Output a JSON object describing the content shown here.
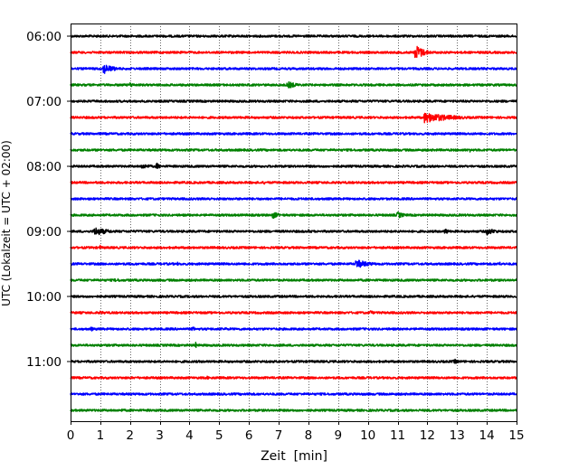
{
  "chart_data": {
    "type": "line",
    "title": "",
    "xlabel": "Zeit  [min]",
    "ylabel": "UTC (Lokalzeit = UTC + 02:00)",
    "xlim": [
      0,
      15
    ],
    "x_ticks": [
      0,
      1,
      2,
      3,
      4,
      5,
      6,
      7,
      8,
      9,
      10,
      11,
      12,
      13,
      14,
      15
    ],
    "x_tick_labels": [
      "0",
      "1",
      "2",
      "3",
      "4",
      "5",
      "6",
      "7",
      "8",
      "9",
      "10",
      "11",
      "12",
      "13",
      "14",
      "15"
    ],
    "y_tick_labels": [
      "06:00",
      "07:00",
      "08:00",
      "09:00",
      "10:00",
      "11:00"
    ],
    "grid": "vertical dotted at each minute",
    "trace_colors": [
      "#000000",
      "#ff0000",
      "#0000ff",
      "#008000"
    ],
    "traces": [
      {
        "label": "06:00",
        "color": "#000000",
        "events": []
      },
      {
        "label": "06:15",
        "color": "#ff0000",
        "events": [
          {
            "t": 11.6,
            "amp": 9,
            "dur": 0.5
          }
        ]
      },
      {
        "label": "06:30",
        "color": "#0000ff",
        "events": [
          {
            "t": 1.1,
            "amp": 6,
            "dur": 0.6
          }
        ]
      },
      {
        "label": "06:45",
        "color": "#008000",
        "events": [
          {
            "t": 2.0,
            "amp": 3,
            "dur": 0.3
          },
          {
            "t": 7.3,
            "amp": 4,
            "dur": 0.6
          }
        ]
      },
      {
        "label": "07:00",
        "color": "#000000",
        "events": []
      },
      {
        "label": "07:15",
        "color": "#ff0000",
        "events": [
          {
            "t": 11.9,
            "amp": 6,
            "dur": 1.6
          }
        ]
      },
      {
        "label": "07:30",
        "color": "#0000ff",
        "events": []
      },
      {
        "label": "07:45",
        "color": "#008000",
        "events": [
          {
            "t": 13.4,
            "amp": 3,
            "dur": 0.2
          }
        ]
      },
      {
        "label": "08:00",
        "color": "#000000",
        "events": [
          {
            "t": 2.4,
            "amp": 3,
            "dur": 0.6
          },
          {
            "t": 2.9,
            "amp": 4,
            "dur": 0.2
          }
        ]
      },
      {
        "label": "08:15",
        "color": "#ff0000",
        "events": [
          {
            "t": 6.5,
            "amp": 2,
            "dur": 0.2
          }
        ]
      },
      {
        "label": "08:30",
        "color": "#0000ff",
        "events": [
          {
            "t": 4.6,
            "amp": 2,
            "dur": 0.5
          }
        ]
      },
      {
        "label": "08:45",
        "color": "#008000",
        "events": [
          {
            "t": 6.8,
            "amp": 4,
            "dur": 0.4
          },
          {
            "t": 11.0,
            "amp": 4,
            "dur": 0.4
          }
        ]
      },
      {
        "label": "09:00",
        "color": "#000000",
        "events": [
          {
            "t": 0.8,
            "amp": 5,
            "dur": 0.8
          },
          {
            "t": 8.0,
            "amp": 2,
            "dur": 0.4
          },
          {
            "t": 12.6,
            "amp": 4,
            "dur": 0.2
          },
          {
            "t": 14.0,
            "amp": 4,
            "dur": 0.6
          }
        ]
      },
      {
        "label": "09:15",
        "color": "#ff0000",
        "events": [
          {
            "t": 1.0,
            "amp": 3,
            "dur": 0.1
          },
          {
            "t": 4.7,
            "amp": 2,
            "dur": 0.2
          }
        ]
      },
      {
        "label": "09:30",
        "color": "#0000ff",
        "events": [
          {
            "t": 9.6,
            "amp": 5,
            "dur": 0.8
          },
          {
            "t": 14.4,
            "amp": 4,
            "dur": 0.1
          },
          {
            "t": 3.6,
            "amp": 2,
            "dur": 0.1
          }
        ]
      },
      {
        "label": "09:45",
        "color": "#008000",
        "events": [
          {
            "t": 1.5,
            "amp": 2,
            "dur": 0.8
          }
        ]
      },
      {
        "label": "10:00",
        "color": "#000000",
        "events": []
      },
      {
        "label": "10:15",
        "color": "#ff0000",
        "events": [
          {
            "t": 1.0,
            "amp": 2,
            "dur": 0.5
          },
          {
            "t": 10.1,
            "amp": 4,
            "dur": 0.1
          }
        ]
      },
      {
        "label": "10:30",
        "color": "#0000ff",
        "events": [
          {
            "t": 0.7,
            "amp": 3,
            "dur": 0.1
          },
          {
            "t": 4.1,
            "amp": 3,
            "dur": 0.2
          },
          {
            "t": 5.2,
            "amp": 2,
            "dur": 0.2
          }
        ]
      },
      {
        "label": "10:45",
        "color": "#008000",
        "events": [
          {
            "t": 4.2,
            "amp": 4,
            "dur": 0.1
          }
        ]
      },
      {
        "label": "11:00",
        "color": "#000000",
        "events": [
          {
            "t": 12.9,
            "amp": 3,
            "dur": 0.3
          }
        ]
      },
      {
        "label": "11:15",
        "color": "#ff0000",
        "events": [
          {
            "t": 4.6,
            "amp": 2,
            "dur": 0.2
          }
        ]
      },
      {
        "label": "11:30",
        "color": "#0000ff",
        "events": [
          {
            "t": 6.0,
            "amp": 3,
            "dur": 0.1
          }
        ]
      },
      {
        "label": "11:45",
        "color": "#008000",
        "events": [
          {
            "t": 1.7,
            "amp": 2,
            "dur": 0.2
          },
          {
            "t": 4.7,
            "amp": 2,
            "dur": 0.2
          }
        ]
      }
    ]
  }
}
